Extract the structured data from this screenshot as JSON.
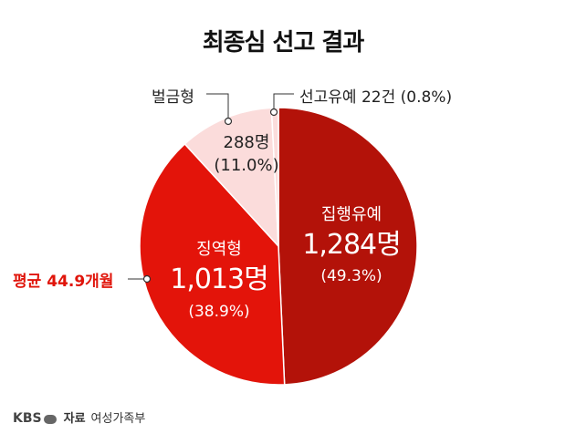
{
  "chart_data": {
    "type": "pie",
    "title": "최종심 선고 결과",
    "slices": [
      {
        "category": "집행유예",
        "count": "1,284명",
        "percent": "(49.3%)",
        "value": 49.3,
        "color": "#b31209"
      },
      {
        "category": "징역형",
        "count": "1,013명",
        "percent": "(38.9%)",
        "value": 38.9,
        "color": "#e3140a"
      },
      {
        "category": "벌금형",
        "count": "288명",
        "percent": "(11.0%)",
        "value": 11.0,
        "color": "#fbdcdb"
      },
      {
        "category": "선고유예",
        "count": "22건",
        "percent": "(0.8%)",
        "value": 0.8,
        "color": "#fbdcdb"
      }
    ],
    "annotation": "평균 44.9개월",
    "callout_suyeo": "선고유예 22건 (0.8%)"
  },
  "footer": {
    "logo": "KBS",
    "source_label": "자료",
    "source": "여성가족부"
  }
}
